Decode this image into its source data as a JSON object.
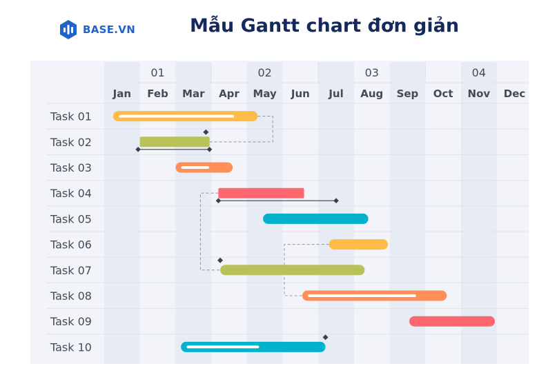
{
  "brand": {
    "name": "BASE.VN"
  },
  "page_title": "Mẫu Gantt chart đơn giản",
  "colors": {
    "panel_bg": "#f2f4f9",
    "column_stripe": "#e6ebf4",
    "row_line": "#dde2ea",
    "brand_blue": "#2064c9",
    "title_navy": "#15295d",
    "dependency_line": "#9aa0a8",
    "marker": "#3b3f46"
  },
  "chart_data": {
    "type": "gantt",
    "quarters": [
      "01",
      "02",
      "03",
      "04"
    ],
    "months": [
      "Jan",
      "Feb",
      "Mar",
      "Apr",
      "May",
      "Jun",
      "Jul",
      "Aug",
      "Sep",
      "Oct",
      "Nov",
      "Dec"
    ],
    "grid": true,
    "tasks": [
      {
        "name": "Task 01",
        "start": 0.25,
        "end": 4.3,
        "color": "#ffbb45",
        "progress_start": 0.45,
        "progress_end": 3.6
      },
      {
        "name": "Task 02",
        "start": 1.0,
        "end": 2.95,
        "color": "#b9c25a",
        "baseline_start": 0.95,
        "baseline_end": 2.95
      },
      {
        "name": "Task 03",
        "start": 2.0,
        "end": 3.6,
        "color": "#ff8f59",
        "progress_start": 2.2,
        "progress_end": 2.9
      },
      {
        "name": "Task 04",
        "start": 3.2,
        "end": 5.6,
        "color": "#fd6770",
        "baseline_start": 3.2,
        "baseline_end": 6.5
      },
      {
        "name": "Task 05",
        "start": 4.45,
        "end": 7.4,
        "color": "#04b2cb"
      },
      {
        "name": "Task 06",
        "start": 6.3,
        "end": 7.95,
        "color": "#ffbb45"
      },
      {
        "name": "Task 07",
        "start": 3.25,
        "end": 7.3,
        "color": "#b9c25a"
      },
      {
        "name": "Task 08",
        "start": 5.55,
        "end": 9.6,
        "color": "#ff8f59",
        "progress_start": 5.75,
        "progress_end": 8.7
      },
      {
        "name": "Task 09",
        "start": 8.55,
        "end": 10.95,
        "color": "#fd6770"
      },
      {
        "name": "Task 10",
        "start": 2.15,
        "end": 6.2,
        "color": "#04b2cb",
        "progress_start": 2.35,
        "progress_end": 4.3
      }
    ],
    "dependencies": [
      {
        "from": 0,
        "to": 1
      },
      {
        "from": 3,
        "to": 6
      },
      {
        "from": 5,
        "to": 7
      }
    ],
    "milestones": [
      {
        "task": 1,
        "at": 2.85
      },
      {
        "task": 6,
        "at": 3.25
      },
      {
        "task": 9,
        "at": 6.2
      }
    ]
  }
}
